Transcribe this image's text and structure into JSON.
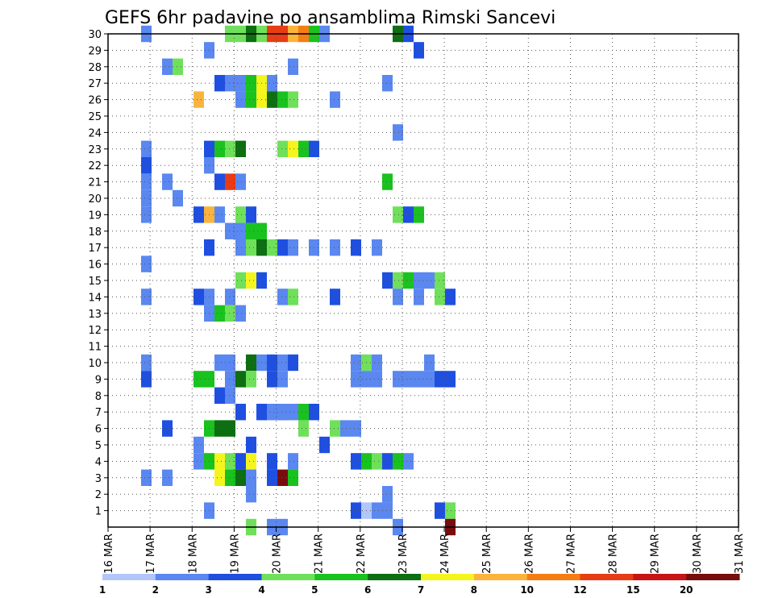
{
  "chart_data": {
    "type": "heatmap",
    "title": "GEFS 6hr padavine po ansamblima Rimski Sancevi",
    "xlabel": "",
    "ylabel": "",
    "grid": true,
    "x_labels": [
      "16 MAR",
      "17 MAR",
      "18 MAR",
      "19 MAR",
      "20 MAR",
      "21 MAR",
      "22 MAR",
      "23 MAR",
      "24 MAR",
      "25 MAR",
      "26 MAR",
      "27 MAR",
      "28 MAR",
      "29 MAR",
      "30 MAR",
      "31 MAR"
    ],
    "y_labels": [
      "1",
      "2",
      "3",
      "4",
      "5",
      "6",
      "7",
      "8",
      "9",
      "10",
      "11",
      "12",
      "13",
      "14",
      "15",
      "16",
      "17",
      "18",
      "19",
      "20",
      "21",
      "22",
      "23",
      "24",
      "25",
      "26",
      "27",
      "28",
      "29",
      "30"
    ],
    "y_range": [
      0,
      30
    ],
    "x_range": [
      0,
      60
    ],
    "legend": {
      "labels": [
        "1",
        "2",
        "3",
        "4",
        "5",
        "6",
        "7",
        "8",
        "10",
        "12",
        "15",
        "20"
      ],
      "colors": [
        "#b3c6fa",
        "#5a87f0",
        "#1e4fe0",
        "#6fe05a",
        "#19c21e",
        "#0d6e12",
        "#f5f51e",
        "#fab43c",
        "#f57d14",
        "#e83c14",
        "#c81414",
        "#780d0d"
      ],
      "position": "bottom"
    },
    "cells": [
      [
        3,
        30,
        1
      ],
      [
        11,
        30,
        3
      ],
      [
        12,
        30,
        3
      ],
      [
        13,
        30,
        5
      ],
      [
        14,
        30,
        3
      ],
      [
        15,
        30,
        9
      ],
      [
        16,
        30,
        9
      ],
      [
        17,
        30,
        7
      ],
      [
        18,
        30,
        8
      ],
      [
        19,
        30,
        4
      ],
      [
        20,
        30,
        1
      ],
      [
        27,
        30,
        5
      ],
      [
        28,
        30,
        2
      ],
      [
        9,
        29,
        1
      ],
      [
        29,
        29,
        2
      ],
      [
        5,
        28,
        1
      ],
      [
        6,
        28,
        3
      ],
      [
        17,
        28,
        1
      ],
      [
        10,
        27,
        2
      ],
      [
        11,
        27,
        1
      ],
      [
        12,
        27,
        1
      ],
      [
        13,
        27,
        4
      ],
      [
        14,
        27,
        6
      ],
      [
        15,
        27,
        1
      ],
      [
        26,
        27,
        1
      ],
      [
        8,
        26,
        7
      ],
      [
        12,
        26,
        1
      ],
      [
        13,
        26,
        4
      ],
      [
        14,
        26,
        6
      ],
      [
        15,
        26,
        5
      ],
      [
        16,
        26,
        4
      ],
      [
        17,
        26,
        3
      ],
      [
        21,
        26,
        1
      ],
      [
        27,
        24,
        1
      ],
      [
        3,
        23,
        1
      ],
      [
        9,
        23,
        2
      ],
      [
        10,
        23,
        4
      ],
      [
        11,
        23,
        3
      ],
      [
        12,
        23,
        5
      ],
      [
        16,
        23,
        3
      ],
      [
        17,
        23,
        6
      ],
      [
        18,
        23,
        4
      ],
      [
        19,
        23,
        2
      ],
      [
        3,
        22,
        2
      ],
      [
        9,
        22,
        1
      ],
      [
        3,
        21,
        1
      ],
      [
        5,
        21,
        1
      ],
      [
        10,
        21,
        2
      ],
      [
        11,
        21,
        9
      ],
      [
        12,
        21,
        1
      ],
      [
        26,
        21,
        4
      ],
      [
        3,
        20,
        1
      ],
      [
        6,
        20,
        1
      ],
      [
        3,
        19,
        1
      ],
      [
        8,
        19,
        2
      ],
      [
        9,
        19,
        7
      ],
      [
        10,
        19,
        1
      ],
      [
        12,
        19,
        3
      ],
      [
        13,
        19,
        2
      ],
      [
        27,
        19,
        3
      ],
      [
        28,
        19,
        2
      ],
      [
        29,
        19,
        4
      ],
      [
        11,
        18,
        1
      ],
      [
        12,
        18,
        1
      ],
      [
        13,
        18,
        4
      ],
      [
        14,
        18,
        4
      ],
      [
        9,
        17,
        2
      ],
      [
        12,
        17,
        1
      ],
      [
        13,
        17,
        3
      ],
      [
        14,
        17,
        5
      ],
      [
        15,
        17,
        3
      ],
      [
        16,
        17,
        2
      ],
      [
        17,
        17,
        1
      ],
      [
        19,
        17,
        1
      ],
      [
        21,
        17,
        1
      ],
      [
        23,
        17,
        2
      ],
      [
        25,
        17,
        1
      ],
      [
        3,
        16,
        1
      ],
      [
        12,
        15,
        3
      ],
      [
        13,
        15,
        6
      ],
      [
        14,
        15,
        2
      ],
      [
        26,
        15,
        2
      ],
      [
        27,
        15,
        3
      ],
      [
        28,
        15,
        4
      ],
      [
        29,
        15,
        1
      ],
      [
        30,
        15,
        1
      ],
      [
        31,
        15,
        3
      ],
      [
        3,
        14,
        1
      ],
      [
        8,
        14,
        2
      ],
      [
        9,
        14,
        1
      ],
      [
        11,
        14,
        1
      ],
      [
        16,
        14,
        1
      ],
      [
        17,
        14,
        3
      ],
      [
        21,
        14,
        2
      ],
      [
        27,
        14,
        1
      ],
      [
        29,
        14,
        1
      ],
      [
        31,
        14,
        3
      ],
      [
        32,
        14,
        2
      ],
      [
        9,
        13,
        1
      ],
      [
        10,
        13,
        4
      ],
      [
        11,
        13,
        3
      ],
      [
        12,
        13,
        1
      ],
      [
        3,
        10,
        1
      ],
      [
        10,
        10,
        1
      ],
      [
        11,
        10,
        1
      ],
      [
        13,
        10,
        5
      ],
      [
        14,
        10,
        1
      ],
      [
        15,
        10,
        2
      ],
      [
        16,
        10,
        1
      ],
      [
        17,
        10,
        2
      ],
      [
        23,
        10,
        1
      ],
      [
        24,
        10,
        3
      ],
      [
        25,
        10,
        1
      ],
      [
        30,
        10,
        1
      ],
      [
        3,
        9,
        2
      ],
      [
        8,
        9,
        4
      ],
      [
        9,
        9,
        4
      ],
      [
        11,
        9,
        1
      ],
      [
        12,
        9,
        5
      ],
      [
        13,
        9,
        3
      ],
      [
        15,
        9,
        2
      ],
      [
        16,
        9,
        1
      ],
      [
        23,
        9,
        1
      ],
      [
        24,
        9,
        1
      ],
      [
        25,
        9,
        1
      ],
      [
        27,
        9,
        1
      ],
      [
        28,
        9,
        1
      ],
      [
        29,
        9,
        1
      ],
      [
        30,
        9,
        1
      ],
      [
        31,
        9,
        2
      ],
      [
        32,
        9,
        2
      ],
      [
        10,
        8,
        2
      ],
      [
        11,
        8,
        1
      ],
      [
        12,
        7,
        2
      ],
      [
        14,
        7,
        2
      ],
      [
        15,
        7,
        1
      ],
      [
        16,
        7,
        1
      ],
      [
        17,
        7,
        1
      ],
      [
        18,
        7,
        4
      ],
      [
        19,
        7,
        2
      ],
      [
        16,
        7,
        1
      ],
      [
        5,
        6,
        2
      ],
      [
        9,
        6,
        4
      ],
      [
        10,
        6,
        5
      ],
      [
        11,
        6,
        5
      ],
      [
        18,
        6,
        3
      ],
      [
        21,
        6,
        3
      ],
      [
        22,
        6,
        1
      ],
      [
        23,
        6,
        1
      ],
      [
        8,
        5,
        1
      ],
      [
        13,
        5,
        2
      ],
      [
        20,
        5,
        2
      ],
      [
        8,
        4,
        1
      ],
      [
        9,
        4,
        4
      ],
      [
        10,
        4,
        6
      ],
      [
        11,
        4,
        3
      ],
      [
        12,
        4,
        2
      ],
      [
        13,
        4,
        6
      ],
      [
        15,
        4,
        2
      ],
      [
        17,
        4,
        1
      ],
      [
        23,
        4,
        2
      ],
      [
        24,
        4,
        4
      ],
      [
        25,
        4,
        3
      ],
      [
        26,
        4,
        2
      ],
      [
        27,
        4,
        4
      ],
      [
        28,
        4,
        1
      ],
      [
        3,
        3,
        1
      ],
      [
        5,
        3,
        1
      ],
      [
        10,
        3,
        6
      ],
      [
        11,
        3,
        4
      ],
      [
        12,
        3,
        5
      ],
      [
        13,
        3,
        1
      ],
      [
        15,
        3,
        2
      ],
      [
        16,
        3,
        11
      ],
      [
        17,
        3,
        4
      ],
      [
        13,
        2,
        1
      ],
      [
        26,
        2,
        1
      ],
      [
        9,
        1,
        1
      ],
      [
        23,
        1,
        2
      ],
      [
        24,
        1,
        13
      ],
      [
        25,
        1,
        1
      ],
      [
        26,
        1,
        1
      ],
      [
        31,
        1,
        2
      ],
      [
        32,
        1,
        3
      ],
      [
        13,
        0,
        3
      ],
      [
        15,
        0,
        1
      ],
      [
        16,
        0,
        1
      ],
      [
        27,
        0,
        1
      ],
      [
        32,
        0,
        11
      ]
    ]
  }
}
